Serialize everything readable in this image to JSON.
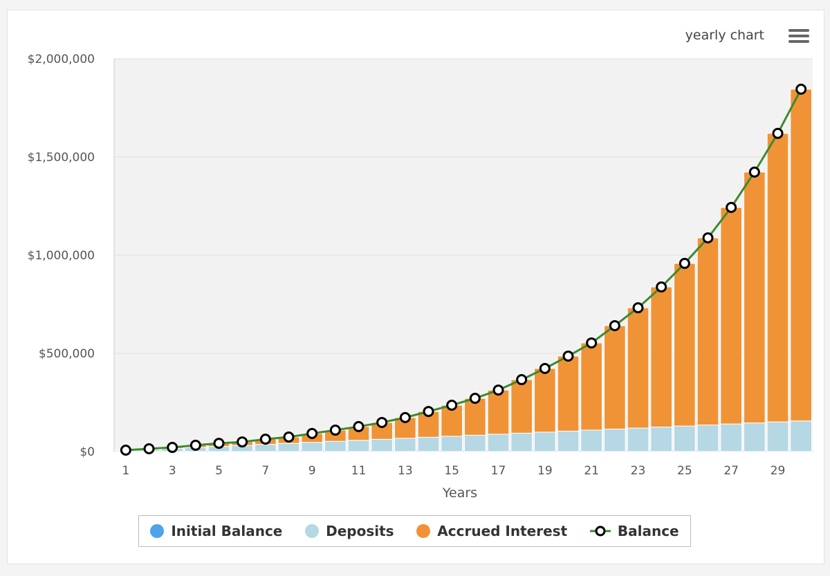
{
  "header": {
    "title": "yearly chart",
    "menu_icon": "hamburger-menu-icon"
  },
  "chart_data": {
    "type": "bar",
    "stacked": true,
    "title": "yearly chart",
    "xlabel": "Years",
    "ylabel": "",
    "ylim": [
      0,
      2000000
    ],
    "yticks": [
      "$0",
      "$500,000",
      "$1,000,000",
      "$1,500,000",
      "$2,000,000"
    ],
    "ytick_values": [
      0,
      500000,
      1000000,
      1500000,
      2000000
    ],
    "grid": true,
    "legend_position": "bottom",
    "categories": [
      1,
      2,
      3,
      4,
      5,
      6,
      7,
      8,
      9,
      10,
      11,
      12,
      13,
      14,
      15,
      16,
      17,
      18,
      19,
      20,
      21,
      22,
      23,
      24,
      25,
      26,
      27,
      28,
      29,
      30
    ],
    "series": [
      {
        "name": "Initial Balance",
        "type": "bar",
        "color": "#4fa3e8",
        "values": [
          0,
          0,
          0,
          0,
          0,
          0,
          0,
          0,
          0,
          0,
          0,
          0,
          0,
          0,
          0,
          0,
          0,
          0,
          0,
          0,
          0,
          0,
          0,
          0,
          0,
          0,
          0,
          0,
          0,
          0
        ]
      },
      {
        "name": "Deposits",
        "type": "bar",
        "color": "#b6d7e4",
        "values": [
          5200,
          10400,
          15600,
          20800,
          26000,
          31200,
          36400,
          41600,
          46800,
          52000,
          57200,
          62400,
          67600,
          72800,
          78000,
          83200,
          88400,
          93600,
          98800,
          104000,
          109200,
          114400,
          119600,
          124800,
          130000,
          135200,
          140400,
          145600,
          150800,
          156000
        ]
      },
      {
        "name": "Accrued Interest",
        "type": "bar",
        "color": "#f09337",
        "values": [
          1800,
          3600,
          5400,
          11200,
          16000,
          17800,
          26600,
          32400,
          45200,
          57000,
          69800,
          85600,
          105400,
          131200,
          158000,
          187800,
          224600,
          272400,
          324200,
          382000,
          443800,
          526600,
          612400,
          713200,
          828000,
          952800,
          1102600,
          1277400,
          1469200,
          1689000
        ]
      },
      {
        "name": "Balance",
        "type": "line",
        "color": "#3c8a2e",
        "values": [
          7000,
          14000,
          21000,
          32000,
          42000,
          49000,
          63000,
          74000,
          92000,
          109000,
          127000,
          148000,
          173000,
          204000,
          236000,
          271000,
          313000,
          366000,
          423000,
          486000,
          553000,
          641000,
          732000,
          838000,
          958000,
          1088000,
          1243000,
          1423000,
          1620000,
          1845000
        ]
      }
    ]
  }
}
